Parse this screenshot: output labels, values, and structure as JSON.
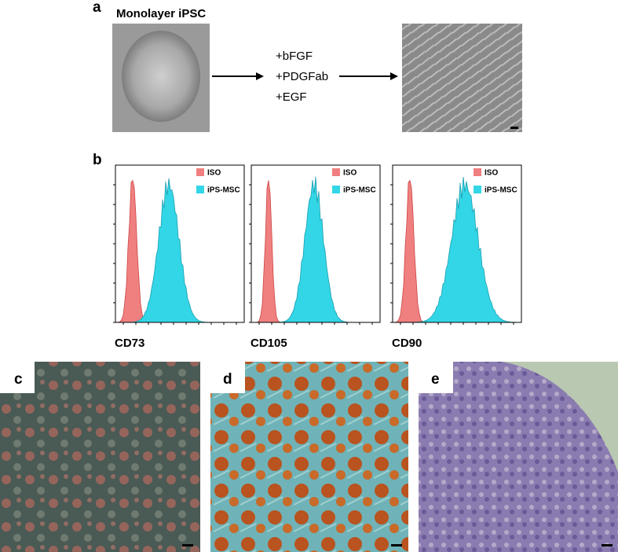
{
  "panel_a": {
    "label": "a",
    "title": "Monolayer iPSC",
    "factors": [
      "+bFGF",
      "+PDGFab",
      "+EGF"
    ]
  },
  "panel_b": {
    "label": "b",
    "legend": [
      "ISO",
      "iPS-MSC"
    ],
    "plots": [
      {
        "marker": "CD73"
      },
      {
        "marker": "CD105"
      },
      {
        "marker": "CD90"
      }
    ]
  },
  "panels": [
    {
      "label": "c"
    },
    {
      "label": "d"
    },
    {
      "label": "e"
    }
  ]
}
